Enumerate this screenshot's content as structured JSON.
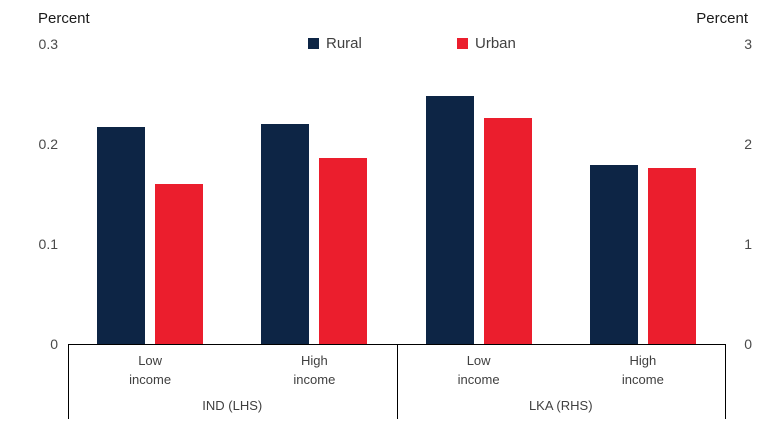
{
  "colors": {
    "rural": "#0d2545",
    "urban": "#eb1e2d",
    "axis_line": "#000000",
    "tick_text": "#4a4a4a",
    "label_text": "#404040",
    "unit_text": "#1a1a1a",
    "background": "#ffffff"
  },
  "chart_data": {
    "type": "bar",
    "title": "",
    "legend": {
      "position": "top"
    },
    "axes": {
      "left": {
        "label": "Percent",
        "range": [
          0,
          0.3
        ],
        "ticks": [
          0,
          0.1,
          0.2,
          0.3
        ]
      },
      "right": {
        "label": "Percent",
        "range": [
          0,
          3
        ],
        "ticks": [
          0,
          1,
          2,
          3
        ]
      }
    },
    "series": [
      {
        "name": "Rural",
        "color": "#0d2545"
      },
      {
        "name": "Urban",
        "color": "#eb1e2d"
      }
    ],
    "panels": [
      {
        "label": "IND (LHS)",
        "axis": "left",
        "groups": [
          {
            "label": [
              "Low",
              "income"
            ],
            "values": [
              0.217,
              0.16
            ]
          },
          {
            "label": [
              "High",
              "income"
            ],
            "values": [
              0.22,
              0.186
            ]
          }
        ]
      },
      {
        "label": "LKA (RHS)",
        "axis": "right",
        "groups": [
          {
            "label": [
              "Low",
              "income"
            ],
            "values": [
              2.48,
              2.26
            ]
          },
          {
            "label": [
              "High",
              "income"
            ],
            "values": [
              1.79,
              1.76
            ]
          }
        ]
      }
    ]
  }
}
